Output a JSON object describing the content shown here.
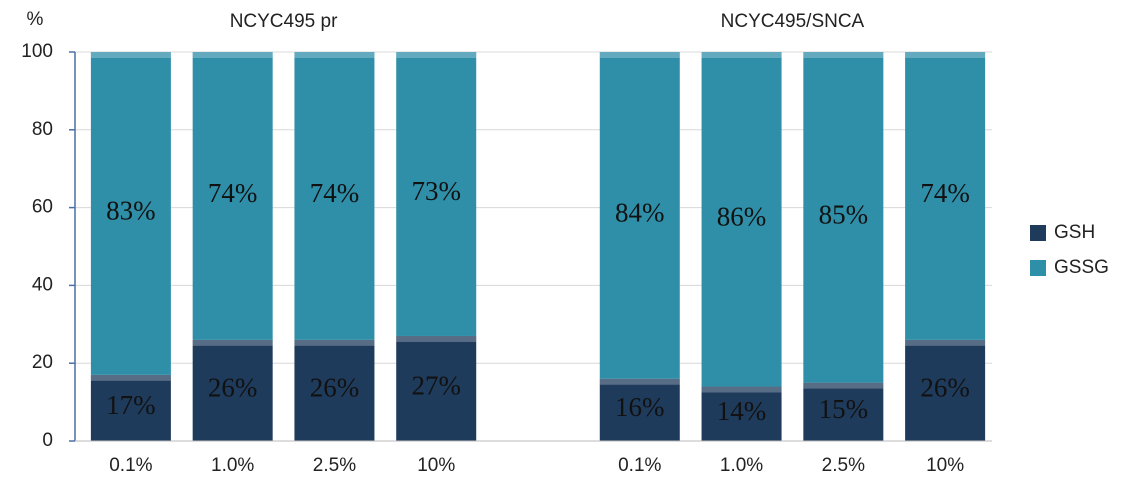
{
  "chart_data": {
    "type": "stacked_bar",
    "group_titles": [
      "NCYC495 pr",
      "NCYC495/SNCA"
    ],
    "y_label": "%",
    "categories": [
      "0.1%",
      "1.0%",
      "2.5%",
      "10%",
      null,
      "0.1%",
      "1.0%",
      "2.5%",
      "10%"
    ],
    "series": [
      {
        "name": "GSH",
        "color": "#1f3b5c",
        "values": [
          17,
          26,
          26,
          27,
          null,
          16,
          14,
          15,
          26
        ],
        "value_labels": [
          "17%",
          "26%",
          "26%",
          "27%",
          null,
          "16%",
          "14%",
          "15%",
          "26%"
        ]
      },
      {
        "name": "GSSG",
        "color": "#2f8ea8",
        "values": [
          83,
          74,
          74,
          73,
          null,
          84,
          86,
          85,
          74
        ],
        "value_labels": [
          "83%",
          "74%",
          "74%",
          "73%",
          null,
          "84%",
          "86%",
          "85%",
          "74%"
        ]
      }
    ],
    "ylim": [
      0,
      100
    ],
    "yticks": [
      0,
      20,
      40,
      60,
      80,
      100
    ],
    "grid": true,
    "legend": "right"
  }
}
